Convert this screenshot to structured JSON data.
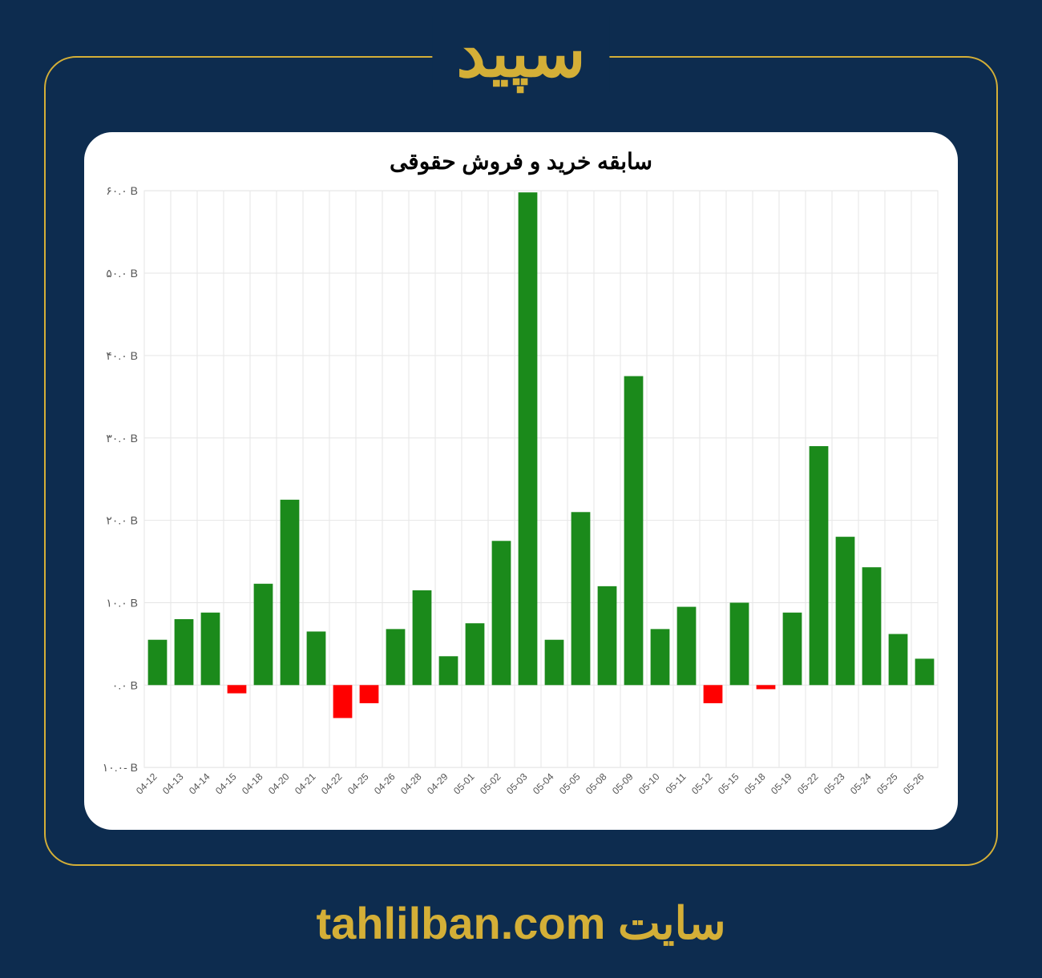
{
  "header": {
    "brand": "سپید"
  },
  "footer": {
    "site_word": "سایت",
    "site_url": "tahlilban.com"
  },
  "chart": {
    "type": "bar",
    "title": "سابقه خرید و فروش حقوقی",
    "title_fontsize": 28,
    "background_color": "#ffffff",
    "page_background": "#0d2c4f",
    "frame_border_color": "#d4af37",
    "grid_color": "#e6e6e6",
    "axis_line_color": "#888888",
    "bar_positive_color": "#1b8a1b",
    "bar_negative_color": "#ff0000",
    "bar_width_ratio": 0.72,
    "ylim": [
      -10,
      60
    ],
    "ytick_step": 10,
    "y_suffix": " B",
    "y_ticks": [
      "۱۰.۰-",
      "۰.۰",
      "۱۰.۰",
      "۲۰.۰",
      "۳۰.۰",
      "۴۰.۰",
      "۵۰.۰",
      "۶۰.۰"
    ],
    "y_tick_values": [
      -10,
      0,
      10,
      20,
      30,
      40,
      50,
      60
    ],
    "categories": [
      "04-12",
      "04-13",
      "04-14",
      "04-15",
      "04-18",
      "04-20",
      "04-21",
      "04-22",
      "04-25",
      "04-26",
      "04-28",
      "04-29",
      "05-01",
      "05-02",
      "05-03",
      "05-04",
      "05-05",
      "05-08",
      "05-09",
      "05-10",
      "05-11",
      "05-12",
      "05-15",
      "05-18",
      "05-19",
      "05-22",
      "05-23",
      "05-24",
      "05-25",
      "05-26"
    ],
    "values": [
      5.5,
      8.0,
      8.8,
      -1.0,
      12.3,
      22.5,
      6.5,
      -4.0,
      -2.2,
      6.8,
      11.5,
      3.5,
      7.5,
      17.5,
      59.8,
      5.5,
      21.0,
      12.0,
      37.5,
      6.8,
      9.5,
      -2.2,
      10.0,
      -0.5,
      8.8,
      29.0,
      18.0,
      14.3,
      6.2,
      3.2
    ],
    "x_label_fontsize": 12,
    "y_label_fontsize": 14
  }
}
